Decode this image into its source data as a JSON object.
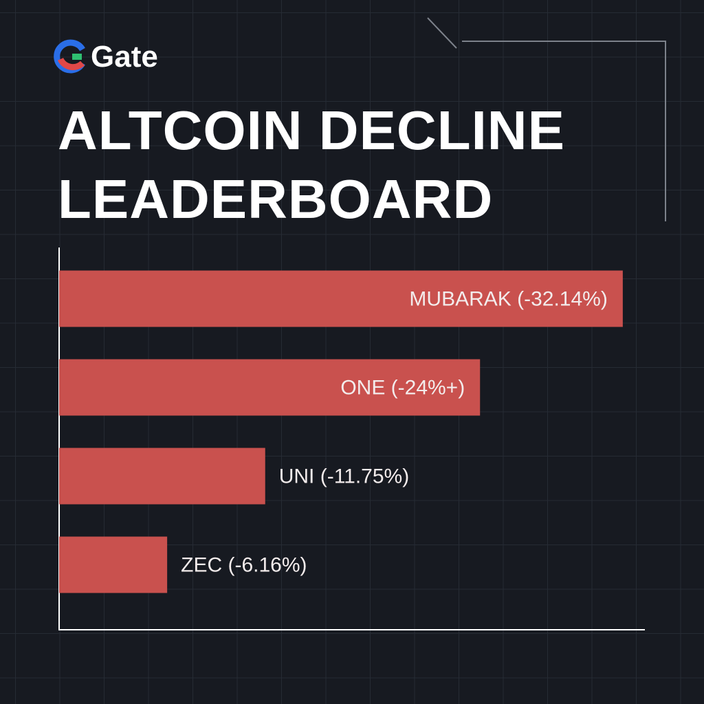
{
  "brand": "Gate",
  "chart_data": {
    "type": "bar",
    "orientation": "horizontal",
    "title": "ALTCOIN DECLINE LEADERBOARD",
    "values": [
      -32.14,
      -24,
      -11.75,
      -6.16
    ],
    "value_labels": [
      "MUBARAK (-32.14%)",
      "ONE (-24%+)",
      "UNI (-11.75%)",
      "ZEC (-6.16%)"
    ],
    "color": "#c9514e",
    "xlim": [
      0,
      -33.4
    ]
  }
}
